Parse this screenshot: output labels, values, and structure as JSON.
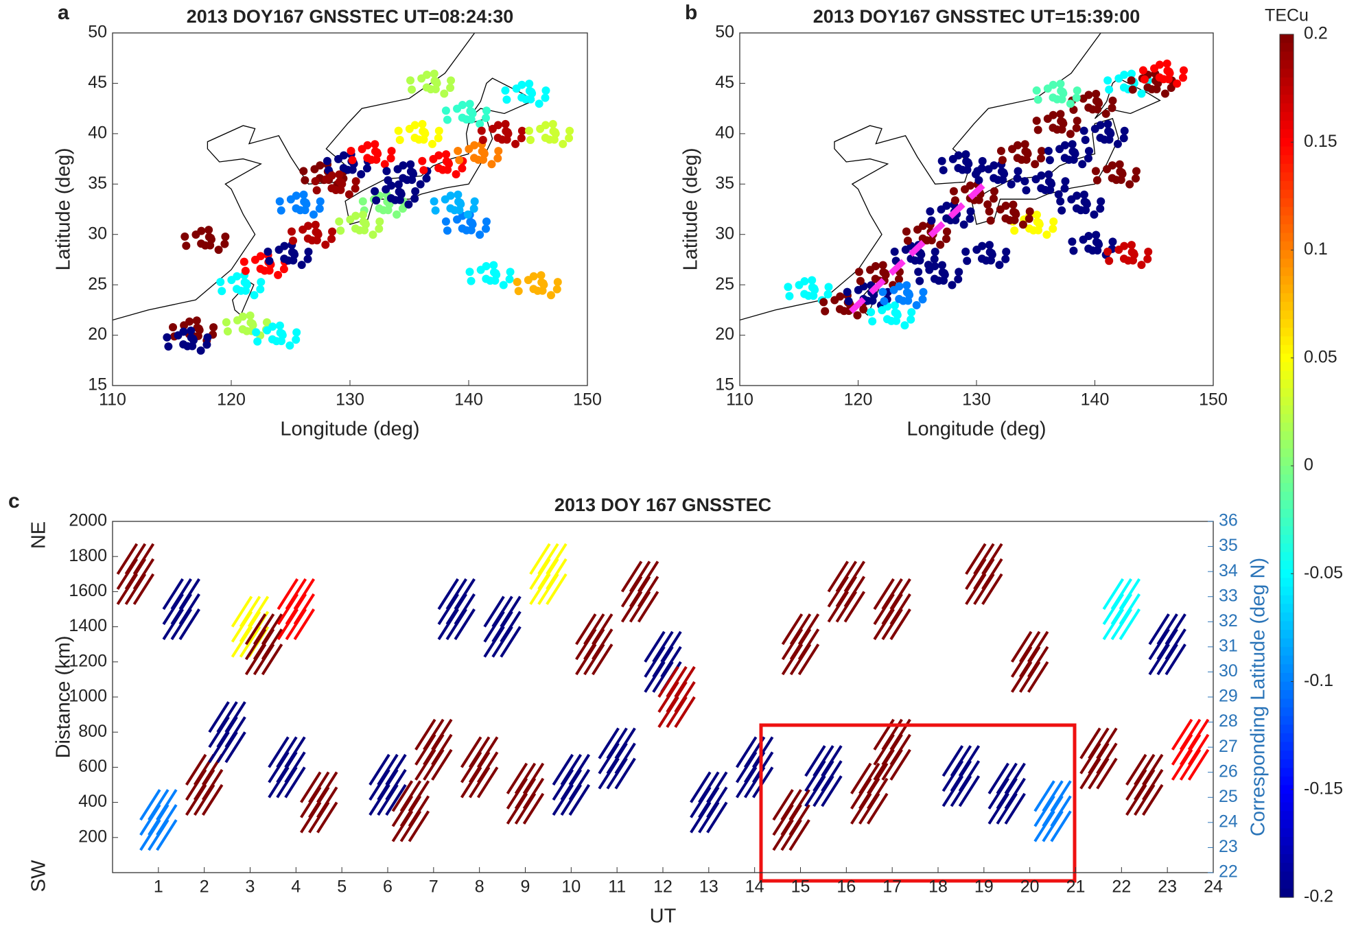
{
  "chart_data": [
    {
      "type": "scatter",
      "panel": "a",
      "title": "2013 DOY167 GNSSTEC UT=08:24:30",
      "x_label": "Longitude (deg)",
      "y_label": "Latitude (deg)",
      "xlim": [
        110,
        150
      ],
      "ylim": [
        15,
        50
      ],
      "xticks": [
        110,
        120,
        130,
        140,
        150
      ],
      "yticks": [
        15,
        20,
        25,
        30,
        35,
        40,
        45,
        50
      ],
      "x": [
        118,
        117,
        116.5,
        121,
        121.5,
        124,
        123,
        125,
        127,
        126,
        128,
        130,
        132,
        133,
        135,
        136,
        138,
        140,
        141,
        143,
        145,
        147,
        137,
        140,
        131,
        142,
        146,
        134,
        129,
        139
      ],
      "y": [
        29.5,
        20.5,
        19.5,
        25,
        21,
        20,
        27,
        28,
        30,
        33,
        36,
        37,
        38,
        33,
        36,
        40,
        37,
        42,
        38,
        40,
        44,
        40,
        45,
        31,
        31,
        26,
        25,
        34,
        35,
        33
      ],
      "values": [
        0.2,
        0.2,
        -0.2,
        -0.05,
        0.02,
        -0.05,
        0.15,
        -0.2,
        0.18,
        -0.1,
        0.2,
        -0.2,
        0.15,
        0.0,
        -0.2,
        0.05,
        0.15,
        -0.03,
        0.1,
        0.18,
        -0.05,
        0.03,
        0.02,
        -0.1,
        0.02,
        -0.05,
        0.08,
        -0.2,
        0.19,
        -0.08
      ]
    },
    {
      "type": "scatter",
      "panel": "b",
      "title": "2013 DOY167 GNSSTEC UT=15:39:00",
      "x_label": "Longitude (deg)",
      "y_label": "Latitude (deg)",
      "xlim": [
        110,
        150
      ],
      "ylim": [
        15,
        50
      ],
      "xticks": [
        110,
        120,
        130,
        140,
        150
      ],
      "yticks": [
        15,
        20,
        25,
        30,
        35,
        40,
        45,
        50
      ],
      "x": [
        116,
        119,
        121,
        123,
        122,
        125,
        126,
        128,
        130,
        132,
        134,
        136,
        137,
        138,
        140,
        141,
        143,
        145,
        146,
        142,
        139,
        135,
        127,
        131,
        140,
        143,
        124,
        133,
        137,
        129
      ],
      "y": [
        24.5,
        23,
        24,
        22,
        26,
        28,
        30,
        32,
        34,
        36,
        38,
        35,
        41,
        38,
        43,
        40,
        45,
        45,
        46,
        36,
        33,
        31,
        26,
        28,
        29,
        28,
        24,
        32,
        44,
        37
      ],
      "values": [
        -0.05,
        0.2,
        -0.2,
        -0.05,
        0.2,
        -0.2,
        0.2,
        -0.2,
        0.2,
        -0.2,
        0.2,
        -0.2,
        0.2,
        -0.2,
        0.2,
        -0.2,
        -0.05,
        0.2,
        0.15,
        0.2,
        -0.2,
        0.05,
        -0.2,
        -0.2,
        -0.2,
        0.17,
        -0.1,
        0.2,
        -0.02,
        -0.2
      ]
    },
    {
      "type": "keogram",
      "panel": "c",
      "title": "2013 DOY 167 GNSSTEC",
      "x_label": "UT",
      "y_label": "Distance (km)",
      "y2_label": "Corresponding Latitude (deg N)",
      "top_label": "NE",
      "bottom_label": "SW",
      "xlim": [
        0,
        24
      ],
      "ylim": [
        0,
        2000
      ],
      "y2lim": [
        22,
        36
      ],
      "xticks": [
        1,
        2,
        3,
        4,
        5,
        6,
        7,
        8,
        9,
        10,
        11,
        12,
        13,
        14,
        15,
        16,
        17,
        18,
        19,
        20,
        21,
        22,
        23,
        24
      ],
      "yticks": [
        200,
        400,
        600,
        800,
        1000,
        1200,
        1400,
        1600,
        1800,
        2000
      ],
      "y2ticks": [
        22,
        23,
        24,
        25,
        26,
        27,
        28,
        29,
        30,
        31,
        32,
        33,
        34,
        35,
        36
      ],
      "x": [
        0.5,
        1,
        1.5,
        2,
        2.5,
        3,
        3.3,
        3.8,
        4,
        4.5,
        6,
        6.5,
        7,
        7.5,
        8,
        8.5,
        9,
        9.5,
        10,
        10.5,
        11,
        11.5,
        12,
        12.3,
        13,
        14,
        14.8,
        15,
        15.5,
        16,
        16.5,
        17,
        17,
        18.5,
        19,
        19.5,
        20,
        20.5,
        21.5,
        22,
        22.5,
        23,
        23.5
      ],
      "y": [
        1700,
        300,
        1500,
        500,
        800,
        1400,
        1300,
        600,
        1500,
        400,
        500,
        350,
        700,
        1500,
        600,
        1400,
        450,
        1700,
        500,
        1300,
        650,
        1600,
        1200,
        1000,
        400,
        600,
        300,
        1300,
        550,
        1600,
        450,
        700,
        1500,
        550,
        1700,
        450,
        1200,
        350,
        650,
        1500,
        500,
        1300,
        700
      ],
      "values": [
        0.2,
        -0.1,
        -0.2,
        0.2,
        -0.2,
        0.05,
        0.2,
        -0.2,
        0.15,
        0.2,
        -0.2,
        0.2,
        0.2,
        -0.2,
        0.2,
        -0.2,
        0.2,
        0.05,
        -0.2,
        0.2,
        -0.2,
        0.2,
        -0.2,
        0.18,
        -0.2,
        -0.2,
        0.2,
        0.2,
        -0.2,
        0.2,
        0.2,
        0.2,
        0.2,
        -0.2,
        0.2,
        -0.2,
        0.2,
        -0.1,
        0.2,
        -0.05,
        0.2,
        -0.2,
        0.15
      ]
    },
    {
      "type": "colorbar",
      "label": "TECu",
      "ylim": [
        -0.2,
        0.2
      ],
      "yticks": [
        -0.2,
        -0.15,
        -0.1,
        -0.05,
        0,
        0.05,
        0.1,
        0.15,
        0.2
      ]
    }
  ]
}
